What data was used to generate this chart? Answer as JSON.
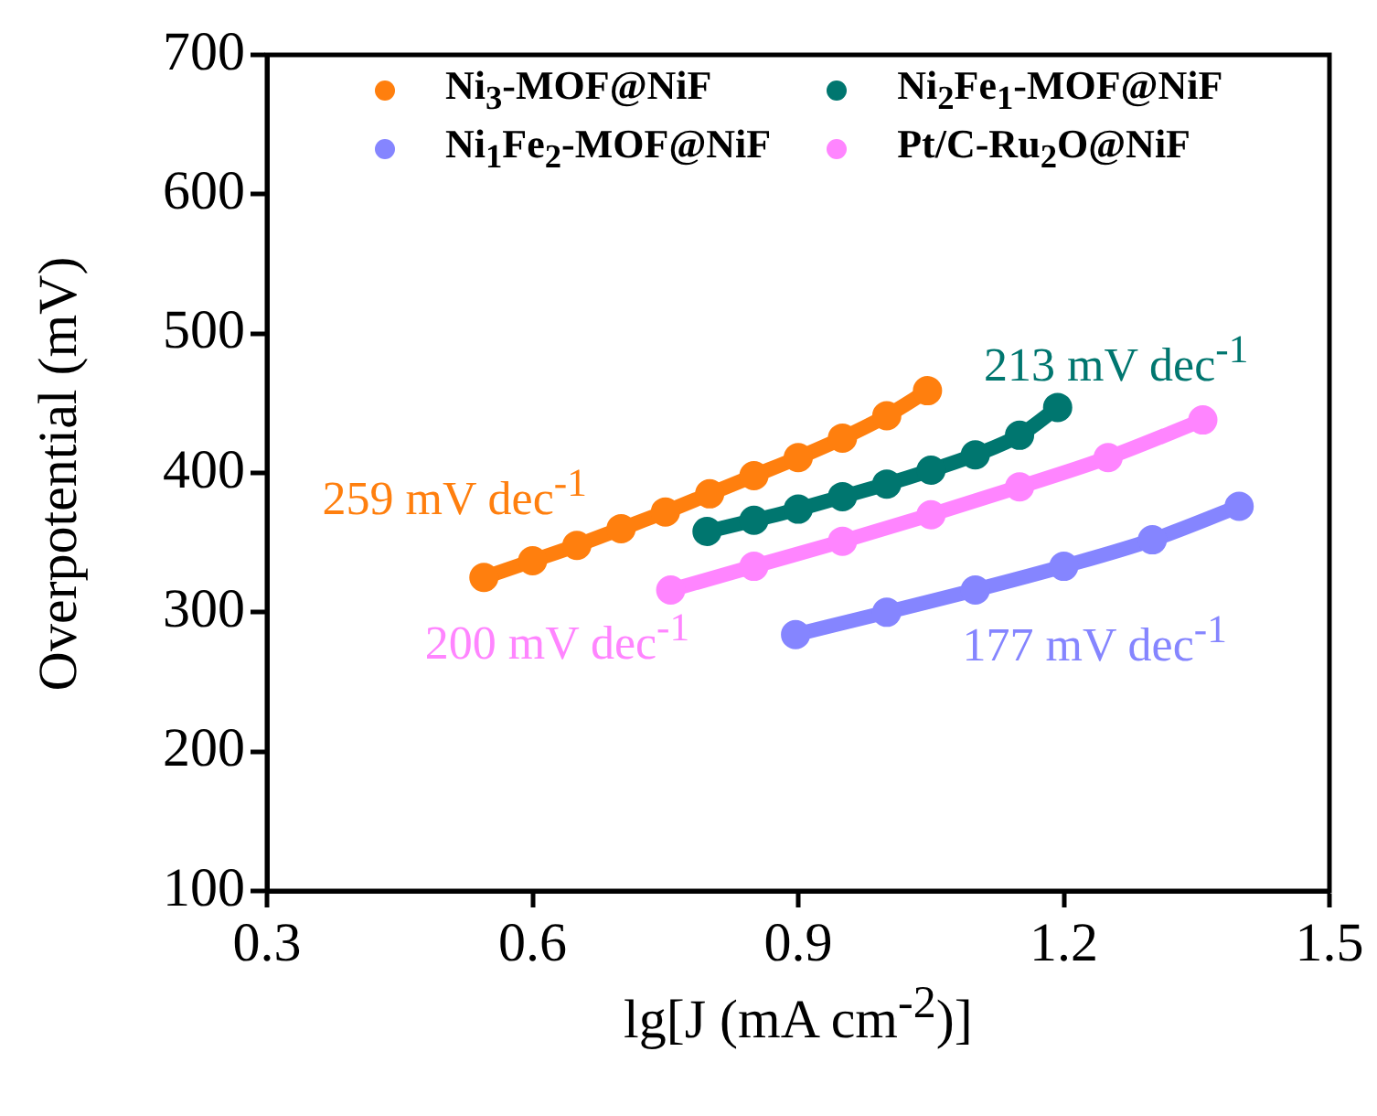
{
  "chart_data": {
    "type": "line",
    "xlabel": "lg[J (mA cm$^{-2}$)]",
    "ylabel": "Overpotential (mV)",
    "marker": "circle",
    "legend": "top",
    "grid": false,
    "xlim": [
      0.3,
      1.5
    ],
    "xticks": [
      0.3,
      0.6,
      0.9,
      1.2,
      1.5
    ],
    "ylim": [
      100,
      700
    ],
    "yticks": [
      100,
      200,
      300,
      400,
      500,
      600,
      700
    ],
    "series": [
      {
        "name": "Ni$_{3}$-MOF@NiF",
        "color": "#ff7f0e",
        "x": [
          0.545,
          0.6,
          0.65,
          0.7,
          0.75,
          0.8,
          0.85,
          0.9,
          0.95,
          1.0,
          1.046
        ],
        "values": [
          325,
          337,
          348,
          360,
          372,
          385,
          398,
          411,
          425,
          441,
          459
        ]
      },
      {
        "name": "Ni$_{2}$Fe$_{1}$-MOF@NiF",
        "color": "#00766f",
        "x": [
          0.797,
          0.85,
          0.9,
          0.95,
          1.0,
          1.05,
          1.1,
          1.15,
          1.193
        ],
        "values": [
          358,
          366,
          374,
          383,
          392,
          402,
          413,
          427,
          447
        ]
      },
      {
        "name": "Ni$_{1}$Fe$_{2}$-MOF@NiF",
        "color": "#8585ff",
        "x": [
          0.897,
          1.0,
          1.1,
          1.2,
          1.3,
          1.398
        ],
        "values": [
          284,
          300,
          316,
          333,
          352,
          376
        ]
      },
      {
        "name": "Pt/C-Ru$_{2}$O@NiF",
        "color": "#ff85ff",
        "x": [
          0.756,
          0.85,
          0.95,
          1.05,
          1.15,
          1.25,
          1.357
        ],
        "values": [
          316,
          333,
          351,
          370,
          390,
          411,
          438
        ]
      }
    ],
    "annotations": [
      "259 mV dec$^{-1}$",
      "213 mV dec$^{-1}$",
      "177 mV dec$^{-1}$",
      "200 mV dec$^{-1}$"
    ]
  }
}
